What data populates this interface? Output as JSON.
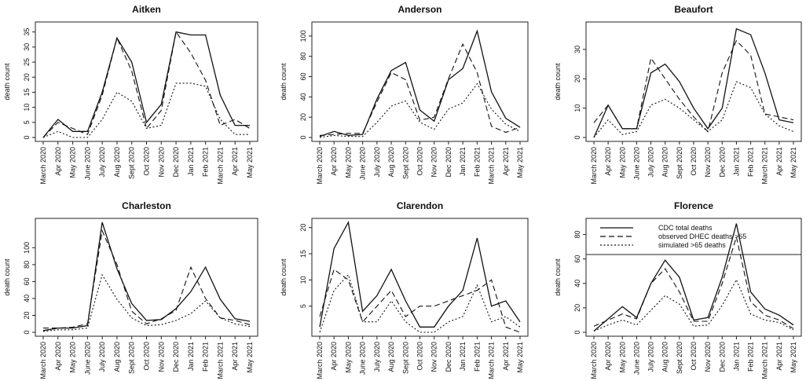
{
  "chart_data": [
    {
      "type": "line",
      "title": "Aitken",
      "xlabel": "",
      "ylabel": "death count",
      "categories": [
        "March 2020",
        "Apr 2020",
        "May 2020",
        "June 2020",
        "July 2020",
        "Aug 2020",
        "Sept 2020",
        "Oct 2020",
        "Nov 2020",
        "Dec 2020",
        "Jan 2021",
        "Feb 2021",
        "March 2021",
        "Apr 2021",
        "May 2021"
      ],
      "ylim": [
        0,
        37
      ],
      "yticks": [
        0,
        5,
        10,
        15,
        20,
        25,
        30,
        35
      ],
      "series": [
        {
          "name": "CDC total deaths",
          "values": [
            0,
            6,
            2,
            2,
            15,
            33,
            25,
            5,
            11,
            35,
            34,
            34,
            14,
            4,
            4
          ]
        },
        {
          "name": "observed DHEC deaths >65",
          "values": [
            0,
            5,
            3,
            1,
            14,
            33,
            22,
            3,
            9,
            35,
            28,
            19,
            4,
            6,
            3
          ]
        },
        {
          "name": "simulated >65 deaths",
          "values": [
            0,
            2,
            0,
            0,
            6,
            15,
            12,
            3,
            4,
            18,
            18,
            17,
            6,
            1,
            1
          ]
        }
      ]
    },
    {
      "type": "line",
      "title": "Anderson",
      "xlabel": "",
      "ylabel": "death count",
      "categories": [
        "March 2020",
        "Apr 2020",
        "May 2020",
        "June 2020",
        "July 2020",
        "Aug 2020",
        "Sept 2020",
        "Oct 2020",
        "Nov 2020",
        "Dec 2020",
        "Jan 2021",
        "Feb 2021",
        "March 2021",
        "Apr 2021",
        "May 2021"
      ],
      "ylim": [
        0,
        110
      ],
      "yticks": [
        0,
        20,
        40,
        60,
        80,
        100
      ],
      "series": [
        {
          "name": "CDC total deaths",
          "values": [
            1,
            6,
            2,
            3,
            38,
            66,
            74,
            27,
            16,
            57,
            68,
            105,
            45,
            19,
            10
          ]
        },
        {
          "name": "observed DHEC deaths >65",
          "values": [
            2,
            3,
            4,
            4,
            35,
            64,
            57,
            17,
            20,
            58,
            92,
            64,
            11,
            5,
            10
          ]
        },
        {
          "name": "simulated >65 deaths",
          "values": [
            0,
            2,
            1,
            1,
            15,
            31,
            36,
            15,
            8,
            28,
            34,
            53,
            28,
            13,
            6
          ]
        }
      ]
    },
    {
      "type": "line",
      "title": "Beaufort",
      "xlabel": "",
      "ylabel": "death count",
      "categories": [
        "March 2020",
        "Apr 2020",
        "May 2020",
        "June 2020",
        "July 2020",
        "Aug 2020",
        "Sept 2020",
        "Oct 2020",
        "Nov 2020",
        "Dec 2020",
        "Jan 2021",
        "Feb 2021",
        "March 2021",
        "Apr 2021",
        "May 2021"
      ],
      "ylim": [
        0,
        38
      ],
      "yticks": [
        0,
        10,
        20,
        30
      ],
      "series": [
        {
          "name": "CDC total deaths",
          "values": [
            0,
            11,
            3,
            3,
            22,
            25,
            19,
            10,
            3,
            10,
            37,
            35,
            22,
            6,
            5
          ]
        },
        {
          "name": "observed DHEC deaths >65",
          "values": [
            5,
            11,
            3,
            3,
            27,
            20,
            13,
            7,
            2,
            22,
            33,
            28,
            8,
            7,
            6
          ]
        },
        {
          "name": "simulated >65 deaths",
          "values": [
            0,
            6,
            1,
            2,
            11,
            13,
            10,
            6,
            2,
            6,
            19,
            17,
            8,
            4,
            2
          ]
        }
      ]
    },
    {
      "type": "line",
      "title": "Charleston",
      "xlabel": "",
      "ylabel": "death count",
      "categories": [
        "March 2020",
        "Apr 2020",
        "May 2020",
        "June 2020",
        "July 2020",
        "Aug 2020",
        "Sept 2020",
        "Oct 2020",
        "Nov 2020",
        "Dec 2020",
        "Jan 2021",
        "Feb 2021",
        "March 2021",
        "Apr 2021",
        "May 2021"
      ],
      "ylim": [
        0,
        130
      ],
      "yticks": [
        0,
        20,
        40,
        60,
        80,
        100
      ],
      "series": [
        {
          "name": "CDC total deaths",
          "values": [
            2,
            5,
            5,
            8,
            130,
            75,
            34,
            14,
            15,
            28,
            48,
            77,
            39,
            16,
            13
          ]
        },
        {
          "name": "observed DHEC deaths >65",
          "values": [
            5,
            5,
            6,
            10,
            120,
            80,
            25,
            10,
            16,
            26,
            77,
            40,
            17,
            14,
            9
          ]
        },
        {
          "name": "simulated >65 deaths",
          "values": [
            1,
            3,
            3,
            5,
            68,
            39,
            17,
            8,
            9,
            14,
            22,
            37,
            17,
            10,
            7
          ]
        }
      ]
    },
    {
      "type": "line",
      "title": "Clarendon",
      "xlabel": "",
      "ylabel": "death count",
      "categories": [
        "March 2020",
        "Apr 2020",
        "May 2020",
        "June 2020",
        "July 2020",
        "Aug 2020",
        "Sept 2020",
        "Oct 2020",
        "Nov 2020",
        "Dec 2020",
        "Jan 2021",
        "Feb 2021",
        "March 2021",
        "Apr 2021",
        "May 2021"
      ],
      "ylim": [
        0,
        21
      ],
      "yticks": [
        5,
        10,
        15,
        20
      ],
      "series": [
        {
          "name": "CDC total deaths",
          "values": [
            1,
            16,
            21,
            4,
            7,
            12,
            6,
            1,
            1,
            5,
            8,
            18,
            5,
            6,
            2
          ]
        },
        {
          "name": "observed DHEC deaths >65",
          "values": [
            3,
            12,
            10,
            2,
            5,
            8,
            3,
            5,
            5,
            6,
            7,
            8,
            10,
            1,
            0
          ]
        },
        {
          "name": "simulated >65 deaths",
          "values": [
            0,
            8,
            11,
            2,
            2,
            6,
            2,
            0,
            0,
            2,
            3,
            9,
            2,
            3,
            1
          ]
        }
      ]
    },
    {
      "type": "line",
      "title": "Florence",
      "xlabel": "",
      "ylabel": "death count",
      "categories": [
        "March 2020",
        "Apr 2020",
        "May 2020",
        "June 2020",
        "July 2020",
        "Aug 2020",
        "Sept 2020",
        "Oct 2020",
        "Nov 2020",
        "Dec 2020",
        "Jan 2021",
        "Feb 2021",
        "March 2021",
        "Apr 2021",
        "May 2021"
      ],
      "ylim": [
        0,
        90
      ],
      "yticks": [
        0,
        20,
        40,
        60,
        80
      ],
      "legend": {
        "placement": "top",
        "entries": [
          "CDC total deaths",
          "observed DHEC deaths >65",
          "simulated >65 deaths"
        ]
      },
      "series": [
        {
          "name": "CDC total deaths",
          "values": [
            1,
            11,
            21,
            12,
            40,
            59,
            45,
            10,
            12,
            45,
            89,
            33,
            19,
            14,
            6
          ]
        },
        {
          "name": "observed DHEC deaths >65",
          "values": [
            5,
            10,
            15,
            11,
            40,
            52,
            33,
            9,
            9,
            40,
            78,
            25,
            14,
            10,
            3
          ]
        },
        {
          "name": "simulated >65 deaths",
          "values": [
            1,
            6,
            10,
            6,
            18,
            30,
            23,
            5,
            6,
            22,
            43,
            15,
            10,
            8,
            2
          ]
        }
      ]
    }
  ]
}
